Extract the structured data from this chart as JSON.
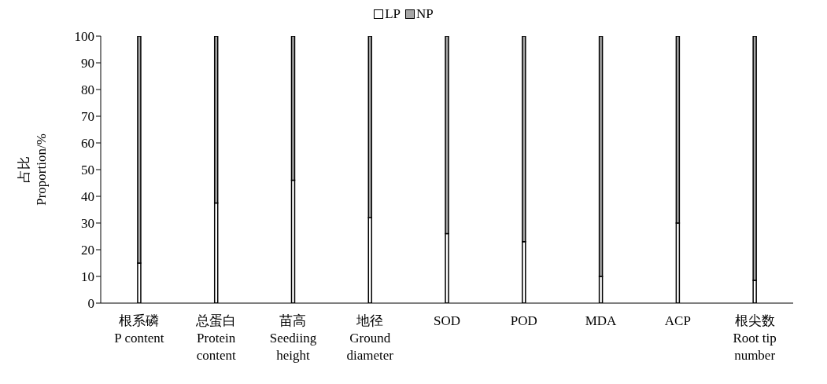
{
  "chart_data": {
    "type": "bar",
    "stacked": true,
    "ylabel": "占比\nProportion/%",
    "categories": [
      "根系磷\nP content",
      "总蛋白\nProtein\ncontent",
      "苗高\nSeediing\nheight",
      "地径\nGround\ndiameter",
      "SOD",
      "POD",
      "MDA",
      "ACP",
      "根尖数\nRoot tip\nnumber"
    ],
    "series": [
      {
        "name": "LP",
        "color": "#ffffff",
        "values": [
          15,
          37.5,
          46,
          32,
          26,
          23,
          10,
          30,
          8.5
        ]
      },
      {
        "name": "NP",
        "color": "#a6a6a6",
        "values": [
          85,
          62.5,
          54,
          68,
          74,
          77,
          90,
          70,
          91.5
        ]
      }
    ],
    "ylim": [
      0,
      100
    ],
    "yticks": [
      0,
      10,
      20,
      30,
      40,
      50,
      60,
      70,
      80,
      90,
      100
    ],
    "grid": false,
    "legend": "top"
  }
}
